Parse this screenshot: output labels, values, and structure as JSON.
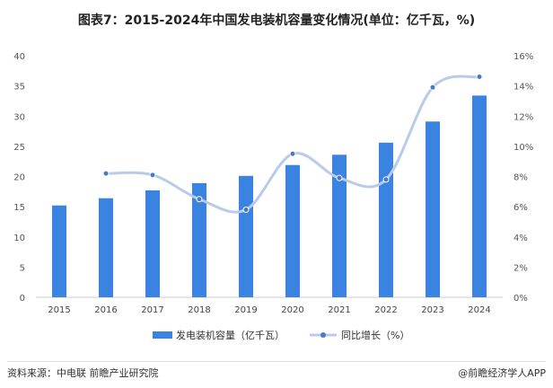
{
  "chart_data": {
    "type": "bar+line",
    "title": "图表7：2015-2024年中国发电装机容量变化情况(单位：亿千瓦，%)",
    "categories": [
      "2015",
      "2016",
      "2017",
      "2018",
      "2019",
      "2020",
      "2021",
      "2022",
      "2023",
      "2024"
    ],
    "series": [
      {
        "name": "发电装机容量（亿千瓦）",
        "type": "bar",
        "axis": "left",
        "color": "#3a83e0",
        "values": [
          15.2,
          16.4,
          17.7,
          18.9,
          20.1,
          21.9,
          23.6,
          25.6,
          29.1,
          33.4
        ]
      },
      {
        "name": "同比增长（%）",
        "type": "line",
        "axis": "right",
        "color": "#b8cbe8",
        "marker_color": "#4a78c8",
        "values": [
          null,
          8.2,
          8.1,
          6.5,
          5.8,
          9.5,
          7.9,
          7.8,
          13.9,
          14.6
        ]
      }
    ],
    "y_left": {
      "range": [
        0,
        40
      ],
      "ticks": [
        "0",
        "5",
        "10",
        "15",
        "20",
        "25",
        "30",
        "35",
        "40"
      ]
    },
    "y_right": {
      "range": [
        0,
        16
      ],
      "ticks": [
        "0%",
        "2%",
        "4%",
        "6%",
        "8%",
        "10%",
        "12%",
        "14%",
        "16%"
      ]
    },
    "grid": false,
    "legend": "bottom"
  },
  "footer": {
    "source": "资料来源：中电联 前瞻产业研究院",
    "brand": "@前瞻经济学人APP"
  }
}
